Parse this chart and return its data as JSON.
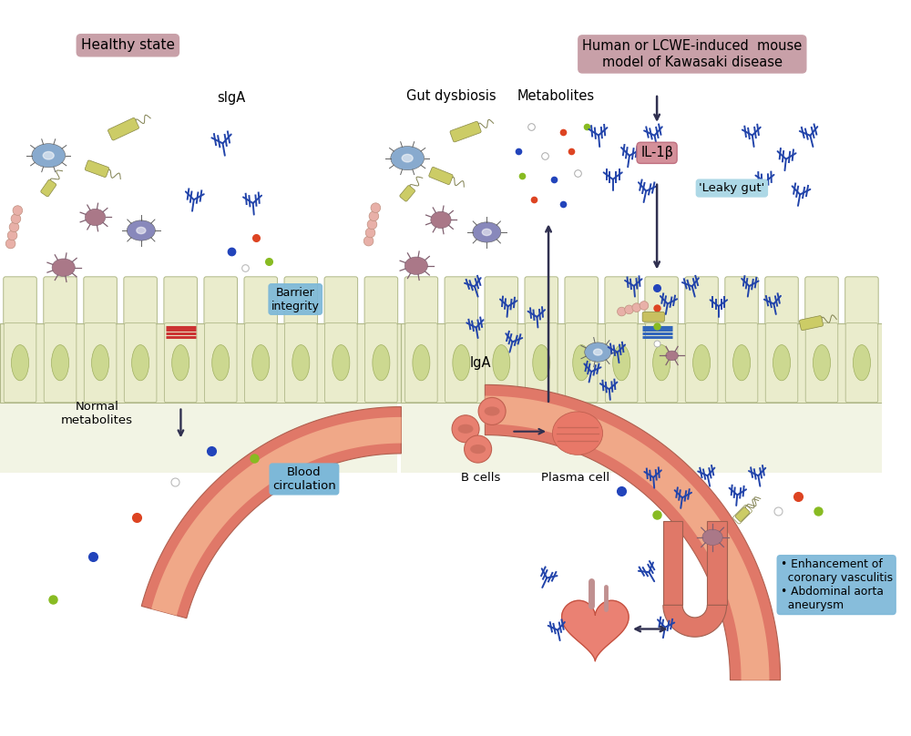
{
  "healthy_label": "Healthy state",
  "disease_label": "Human or LCWE-induced  mouse\nmodel of Kawasaki disease",
  "il1b_label": "IL-1β",
  "leaky_gut_label": "'Leaky gut'",
  "barrier_integrity_label": "Barrier\nintegrity",
  "blood_circulation_label": "Blood\ncirculation",
  "normal_metabolites_label": "Normal\nmetabolites",
  "slga_label": "sIgA",
  "gut_dysbiosis_label": "Gut dysbiosis",
  "metabolites_label": "Metabolites",
  "iga_label": "IgA",
  "b_cells_label": "B cells",
  "plasma_cell_label": "Plasma cell",
  "enhancement_label": "Enhancement of\ncoronary vasculitis\nAbdominal aorta\naneurysm",
  "colors": {
    "background": "#ffffff",
    "healthy_box": "#c8a0a8",
    "disease_box": "#c8a0a8",
    "il1b_box": "#d4909a",
    "leaky_gut_box": "#add8e6",
    "barrier_box": "#7db8d8",
    "blood_box": "#7db8d8",
    "enhancement_box": "#7db8d8",
    "intestine_fill": "#eaeccc",
    "intestine_border": "#b0b888",
    "cell_nucleus": "#ccd890",
    "blood_vessel_outer": "#e07868",
    "blood_vessel_inner": "#f0a888",
    "arrow": "#303050",
    "dot_red": "#dd4422",
    "dot_blue": "#2244bb",
    "dot_green": "#88bb22",
    "antibody": "#2244aa",
    "tight_junction_red": "#cc3333",
    "tight_junction_blue": "#3366bb",
    "microbe_blue": "#88aace",
    "microbe_gray_blue": "#8888bb",
    "microbe_pink_brown": "#aa7888",
    "microbe_yellow": "#cccc66",
    "microbe_chain": "#e8b0a8",
    "rbc": "#e87868"
  }
}
